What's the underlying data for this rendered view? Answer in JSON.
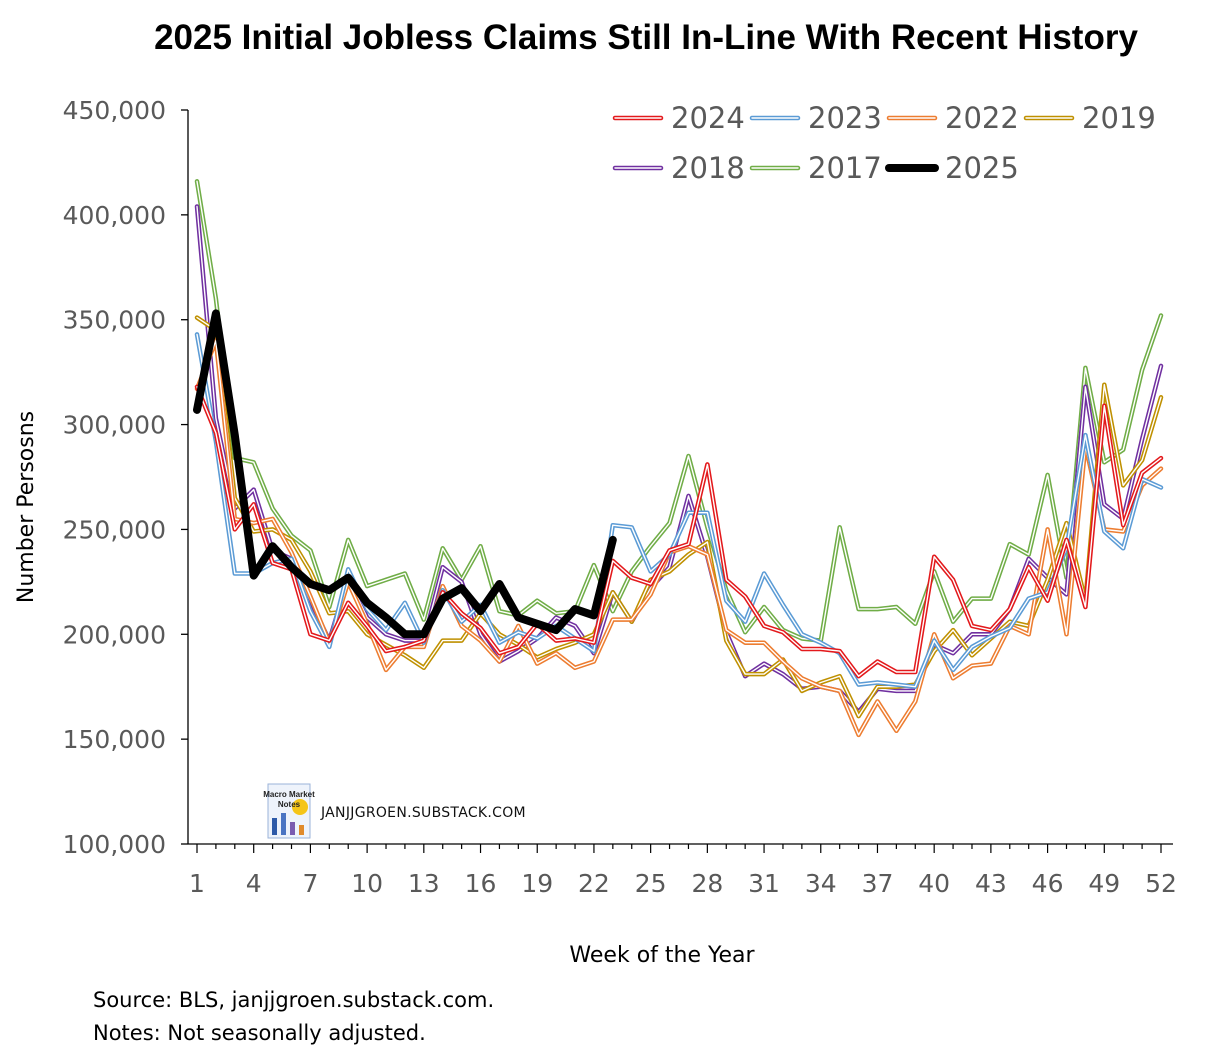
{
  "chart_data": {
    "type": "line",
    "title": "2025 Initial Jobless Claims Still In-Line With Recent History",
    "xlabel": "Week of the Year",
    "ylabel": "Number Persosns",
    "xlim": [
      1,
      52
    ],
    "ylim": [
      100000,
      450000
    ],
    "x_ticks": [
      1,
      4,
      7,
      10,
      13,
      16,
      19,
      22,
      25,
      28,
      31,
      34,
      37,
      40,
      43,
      46,
      49,
      52
    ],
    "y_ticks": [
      100000,
      150000,
      200000,
      250000,
      300000,
      350000,
      400000,
      450000
    ],
    "x_tick_labels": [
      "1",
      "4",
      "7",
      "10",
      "13",
      "16",
      "19",
      "22",
      "25",
      "28",
      "31",
      "34",
      "37",
      "40",
      "43",
      "46",
      "49",
      "52"
    ],
    "y_tick_labels": [
      "100,000",
      "150,000",
      "200,000",
      "250,000",
      "300,000",
      "350,000",
      "400,000",
      "450,000"
    ],
    "grid": false,
    "legend_position": "top-right",
    "source_note": "Source: BLS, janjjgroen.substack.com.",
    "notes": "Notes: Not seasonally adjusted.",
    "watermark": "JANJJGROEN.SUBSTACK.COM",
    "logo_text": [
      "Macro Market",
      "Notes"
    ],
    "series": [
      {
        "name": "2024",
        "color": "#e3191c",
        "values": [
          318000,
          296000,
          250000,
          262000,
          234000,
          231000,
          200000,
          197000,
          215000,
          204000,
          192000,
          194000,
          197000,
          220000,
          210000,
          203000,
          191000,
          194000,
          205000,
          197000,
          198000,
          196000,
          235000,
          227000,
          224000,
          240000,
          243000,
          281000,
          226000,
          218000,
          204000,
          201000,
          193000,
          193000,
          192000,
          180000,
          187000,
          182000,
          182000,
          237000,
          226000,
          204000,
          202000,
          212000,
          232000,
          216000,
          245000,
          213000,
          309000,
          252000,
          277000,
          284000
        ]
      },
      {
        "name": "2023",
        "color": "#5b9bd5",
        "values": [
          343000,
          292000,
          229000,
          229000,
          234000,
          236000,
          211000,
          194000,
          231000,
          212000,
          202000,
          215000,
          196000,
          221000,
          206000,
          214000,
          196000,
          201000,
          198000,
          204000,
          198000,
          192000,
          252000,
          251000,
          230000,
          238000,
          258000,
          258000,
          216000,
          206000,
          229000,
          214000,
          200000,
          196000,
          191000,
          176000,
          177000,
          176000,
          175000,
          197000,
          183000,
          194000,
          199000,
          203000,
          217000,
          220000,
          241000,
          295000,
          249000,
          241000,
          274000,
          270000
        ]
      },
      {
        "name": "2022",
        "color": "#ed7d31",
        "values": [
          317000,
          340000,
          255000,
          253000,
          255000,
          239000,
          218000,
          196000,
          225000,
          205000,
          183000,
          194000,
          194000,
          223000,
          204000,
          197000,
          187000,
          204000,
          186000,
          191000,
          184000,
          187000,
          207000,
          207000,
          219000,
          239000,
          242000,
          238000,
          202000,
          196000,
          196000,
          187000,
          179000,
          175000,
          173000,
          152000,
          168000,
          154000,
          168000,
          200000,
          179000,
          185000,
          186000,
          204000,
          200000,
          250000,
          200000,
          290000,
          250000,
          249000,
          271000,
          279000
        ]
      },
      {
        "name": "2019",
        "color": "#bf9000",
        "values": [
          351000,
          345000,
          265000,
          249000,
          250000,
          245000,
          230000,
          210000,
          211000,
          200000,
          195000,
          190000,
          184000,
          197000,
          197000,
          210000,
          200000,
          195000,
          189000,
          193000,
          196000,
          200000,
          220000,
          206000,
          226000,
          230000,
          238000,
          244000,
          197000,
          181000,
          181000,
          188000,
          173000,
          177000,
          180000,
          161000,
          175000,
          175000,
          176000,
          192000,
          202000,
          190000,
          198000,
          206000,
          204000,
          226000,
          253000,
          216000,
          319000,
          271000,
          283000,
          313000
        ]
      },
      {
        "name": "2018",
        "color": "#7030a0",
        "values": [
          404000,
          303000,
          260000,
          269000,
          240000,
          236000,
          216000,
          197000,
          227000,
          208000,
          200000,
          197000,
          197000,
          232000,
          225000,
          200000,
          187000,
          192000,
          198000,
          208000,
          204000,
          191000,
          220000,
          206000,
          222000,
          232000,
          266000,
          237000,
          201000,
          180000,
          186000,
          181000,
          174000,
          175000,
          173000,
          163000,
          174000,
          173000,
          173000,
          195000,
          191000,
          200000,
          200000,
          212000,
          236000,
          227000,
          219000,
          318000,
          262000,
          255000,
          293000,
          328000
        ]
      },
      {
        "name": "2017",
        "color": "#70ad47",
        "values": [
          416000,
          360000,
          284000,
          282000,
          260000,
          247000,
          240000,
          213000,
          245000,
          223000,
          226000,
          229000,
          207000,
          241000,
          226000,
          242000,
          211000,
          209000,
          216000,
          210000,
          211000,
          233000,
          211000,
          230000,
          242000,
          253000,
          285000,
          251000,
          221000,
          201000,
          213000,
          202000,
          198000,
          197000,
          251000,
          212000,
          212000,
          213000,
          205000,
          230000,
          206000,
          217000,
          217000,
          243000,
          238000,
          276000,
          227000,
          327000,
          282000,
          288000,
          326000,
          352000
        ]
      },
      {
        "name": "2025",
        "color": "#000000",
        "values": [
          307000,
          353000,
          295000,
          228000,
          242000,
          232000,
          224000,
          221000,
          227000,
          215000,
          208000,
          200000,
          200000,
          217000,
          222000,
          211000,
          224000,
          208000,
          205000,
          202000,
          212000,
          209000,
          245000
        ]
      }
    ]
  }
}
